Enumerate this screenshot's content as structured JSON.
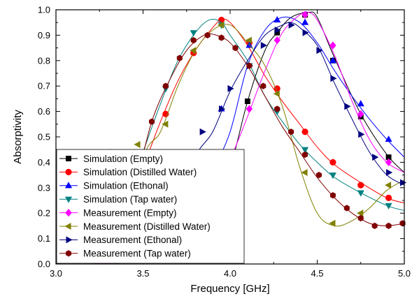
{
  "chart_data": {
    "type": "line",
    "xlabel": "Frequency [GHz]",
    "ylabel": "Absorptivity",
    "xlim": [
      3.0,
      5.0
    ],
    "ylim": [
      0.0,
      1.0
    ],
    "x_ticks": [
      "3.0",
      "3.5",
      "4.0",
      "4.5",
      "5.0"
    ],
    "y_ticks": [
      "0.0",
      "0.1",
      "0.2",
      "0.3",
      "0.4",
      "0.5",
      "0.6",
      "0.7",
      "0.8",
      "0.9",
      "1.0"
    ],
    "legend_position": "left",
    "series": [
      {
        "name": "Simulation (Empty)",
        "color": "#000000",
        "marker": "square",
        "x": [
          3.0,
          3.2,
          3.4,
          3.6,
          3.8,
          3.9,
          4.0,
          4.1,
          4.2,
          4.27,
          4.35,
          4.45,
          4.5,
          4.6,
          4.75,
          4.9,
          5.0
        ],
        "y": [
          0.0,
          0.0,
          0.02,
          0.06,
          0.18,
          0.26,
          0.38,
          0.64,
          0.84,
          0.91,
          0.97,
          0.99,
          0.97,
          0.81,
          0.59,
          0.43,
          0.36
        ],
        "markers_x": [
          4.1,
          4.27,
          4.43,
          4.59,
          4.75,
          4.91
        ],
        "markers_y": [
          0.64,
          0.91,
          0.98,
          0.8,
          0.58,
          0.42
        ]
      },
      {
        "name": "Simulation (Distilled Water)",
        "color": "#ff0000",
        "marker": "circle",
        "x": [
          3.0,
          3.2,
          3.4,
          3.5,
          3.6,
          3.7,
          3.8,
          3.9,
          3.95,
          4.0,
          4.1,
          4.2,
          4.3,
          4.4,
          4.5,
          4.6,
          4.75,
          4.9,
          5.0
        ],
        "y": [
          0.0,
          0.05,
          0.22,
          0.38,
          0.56,
          0.72,
          0.84,
          0.93,
          0.96,
          0.95,
          0.86,
          0.74,
          0.64,
          0.55,
          0.46,
          0.39,
          0.32,
          0.26,
          0.24
        ],
        "markers_x": [
          3.63,
          3.79,
          3.95,
          4.11,
          4.27,
          4.43,
          4.59,
          4.75,
          4.91
        ],
        "markers_y": [
          0.59,
          0.83,
          0.96,
          0.87,
          0.69,
          0.52,
          0.4,
          0.31,
          0.26
        ]
      },
      {
        "name": "Simulation (Ethonal)",
        "color": "#0000ff",
        "marker": "triangle-up",
        "x": [
          3.0,
          3.3,
          3.5,
          3.6,
          3.7,
          3.8,
          3.9,
          4.0,
          4.1,
          4.2,
          4.3,
          4.4,
          4.5,
          4.6,
          4.7,
          4.8,
          4.9,
          5.0
        ],
        "y": [
          0.0,
          0.0,
          0.02,
          0.04,
          0.08,
          0.18,
          0.36,
          0.52,
          0.78,
          0.92,
          0.97,
          0.95,
          0.87,
          0.76,
          0.66,
          0.57,
          0.49,
          0.42
        ],
        "markers_x": [
          3.95,
          4.11,
          4.27,
          4.43,
          4.59,
          4.75,
          4.91
        ],
        "markers_y": [
          0.61,
          0.86,
          0.96,
          0.95,
          0.8,
          0.63,
          0.49
        ]
      },
      {
        "name": "Simulation (Tap water)",
        "color": "#008080",
        "marker": "triangle-down",
        "x": [
          3.0,
          3.2,
          3.4,
          3.5,
          3.6,
          3.7,
          3.8,
          3.88,
          3.95,
          4.0,
          4.1,
          4.2,
          4.3,
          4.4,
          4.5,
          4.6,
          4.75,
          4.9,
          5.0
        ],
        "y": [
          0.0,
          0.04,
          0.24,
          0.44,
          0.63,
          0.8,
          0.91,
          0.96,
          0.95,
          0.9,
          0.8,
          0.66,
          0.56,
          0.47,
          0.4,
          0.34,
          0.28,
          0.23,
          0.21
        ],
        "markers_x": [
          3.47,
          3.63,
          3.79,
          3.95,
          4.11,
          4.27,
          4.43,
          4.59,
          4.75,
          4.91
        ],
        "markers_y": [
          0.44,
          0.69,
          0.91,
          0.94,
          0.78,
          0.6,
          0.45,
          0.35,
          0.28,
          0.23
        ]
      },
      {
        "name": "Measurement (Empty)",
        "color": "#ff00ff",
        "marker": "diamond",
        "x": [
          3.0,
          3.2,
          3.4,
          3.6,
          3.8,
          3.9,
          4.0,
          4.1,
          4.2,
          4.3,
          4.4,
          4.45,
          4.5,
          4.6,
          4.7,
          4.8,
          4.9,
          5.0
        ],
        "y": [
          0.0,
          0.0,
          0.01,
          0.05,
          0.16,
          0.27,
          0.41,
          0.58,
          0.76,
          0.91,
          0.98,
          0.99,
          0.96,
          0.82,
          0.64,
          0.49,
          0.4,
          0.36
        ],
        "markers_x": [
          4.11,
          4.27,
          4.43,
          4.59,
          4.75,
          4.91
        ],
        "markers_y": [
          0.61,
          0.88,
          0.98,
          0.86,
          0.59,
          0.4
        ]
      },
      {
        "name": "Measurement (Distilled Water)",
        "color": "#808000",
        "marker": "triangle-left",
        "x": [
          3.0,
          3.3,
          3.5,
          3.6,
          3.7,
          3.8,
          3.9,
          4.0,
          4.1,
          4.2,
          4.3,
          4.4,
          4.5,
          4.6,
          4.7,
          4.8,
          4.9,
          5.0
        ],
        "y": [
          0.0,
          0.0,
          0.42,
          0.52,
          0.7,
          0.84,
          0.92,
          0.94,
          0.87,
          0.78,
          0.62,
          0.38,
          0.2,
          0.15,
          0.17,
          0.22,
          0.29,
          0.33
        ],
        "markers_x": [
          3.3,
          3.47,
          3.63,
          3.79,
          3.95,
          4.11,
          4.27,
          4.43,
          4.59,
          4.75,
          4.91
        ],
        "markers_y": [
          0.44,
          0.47,
          0.55,
          0.84,
          0.94,
          0.88,
          0.67,
          0.36,
          0.16,
          0.2,
          0.31
        ]
      },
      {
        "name": "Measurement (Ethonal)",
        "color": "#000080",
        "marker": "triangle-right",
        "x": [
          3.0,
          3.3,
          3.5,
          3.6,
          3.7,
          3.8,
          3.9,
          4.0,
          4.1,
          4.2,
          4.3,
          4.35,
          4.4,
          4.5,
          4.6,
          4.7,
          4.8,
          4.9,
          5.0
        ],
        "y": [
          0.0,
          0.0,
          0.02,
          0.06,
          0.2,
          0.42,
          0.52,
          0.68,
          0.8,
          0.9,
          0.94,
          0.95,
          0.93,
          0.86,
          0.71,
          0.57,
          0.44,
          0.35,
          0.31
        ],
        "markers_x": [
          3.84,
          3.95,
          4.0,
          4.11,
          4.19,
          4.27,
          4.35,
          4.43,
          4.51,
          4.59,
          4.67,
          4.75,
          4.83,
          4.91,
          4.99
        ],
        "markers_y": [
          0.52,
          0.61,
          0.69,
          0.78,
          0.86,
          0.92,
          0.94,
          0.91,
          0.84,
          0.73,
          0.62,
          0.51,
          0.42,
          0.36,
          0.32
        ]
      },
      {
        "name": "Measurement (Tap water)",
        "color": "#800000",
        "marker": "hexagon",
        "x": [
          3.0,
          3.3,
          3.45,
          3.55,
          3.65,
          3.75,
          3.85,
          3.92,
          4.0,
          4.1,
          4.2,
          4.3,
          4.4,
          4.5,
          4.6,
          4.7,
          4.8,
          4.9,
          5.0
        ],
        "y": [
          0.0,
          0.0,
          0.3,
          0.56,
          0.72,
          0.84,
          0.9,
          0.9,
          0.87,
          0.78,
          0.66,
          0.54,
          0.44,
          0.34,
          0.26,
          0.2,
          0.16,
          0.15,
          0.16
        ],
        "markers_x": [
          3.55,
          3.63,
          3.71,
          3.79,
          3.87,
          3.95,
          4.03,
          4.11,
          4.19,
          4.27,
          4.35,
          4.43,
          4.51,
          4.59,
          4.67,
          4.75,
          4.83,
          4.91,
          4.99
        ],
        "markers_y": [
          0.56,
          0.7,
          0.81,
          0.88,
          0.9,
          0.89,
          0.85,
          0.78,
          0.7,
          0.61,
          0.52,
          0.43,
          0.35,
          0.27,
          0.22,
          0.18,
          0.15,
          0.15,
          0.16
        ]
      }
    ]
  }
}
